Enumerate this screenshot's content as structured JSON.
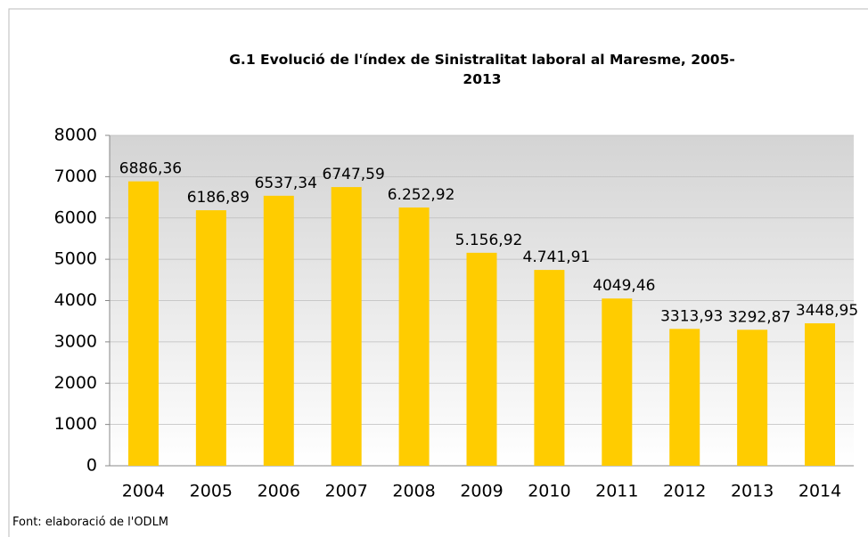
{
  "chart_data": {
    "type": "bar",
    "title": "G.1 Evolució de l'índex de Sinistralitat laboral al Maresme, 2005-2013",
    "categories": [
      "2004",
      "2005",
      "2006",
      "2007",
      "2008",
      "2009",
      "2010",
      "2011",
      "2012",
      "2013",
      "2014"
    ],
    "values": [
      6886.36,
      6186.89,
      6537.34,
      6747.59,
      6252.92,
      5156.92,
      4741.91,
      4049.46,
      3313.93,
      3292.87,
      3448.95
    ],
    "value_labels": [
      "6886,36",
      "6186,89",
      "6537,34",
      "6747,59",
      "6.252,92",
      "5.156,92",
      "4.741,91",
      "4049,46",
      "3313,93",
      "3292,87",
      "3448,95"
    ],
    "color": "#ffcc00",
    "ylim": [
      0,
      8000
    ],
    "yticks": [
      0,
      1000,
      2000,
      3000,
      4000,
      5000,
      6000,
      7000,
      8000
    ],
    "grid": true,
    "source": "Font: elaboració de l'ODLM"
  }
}
